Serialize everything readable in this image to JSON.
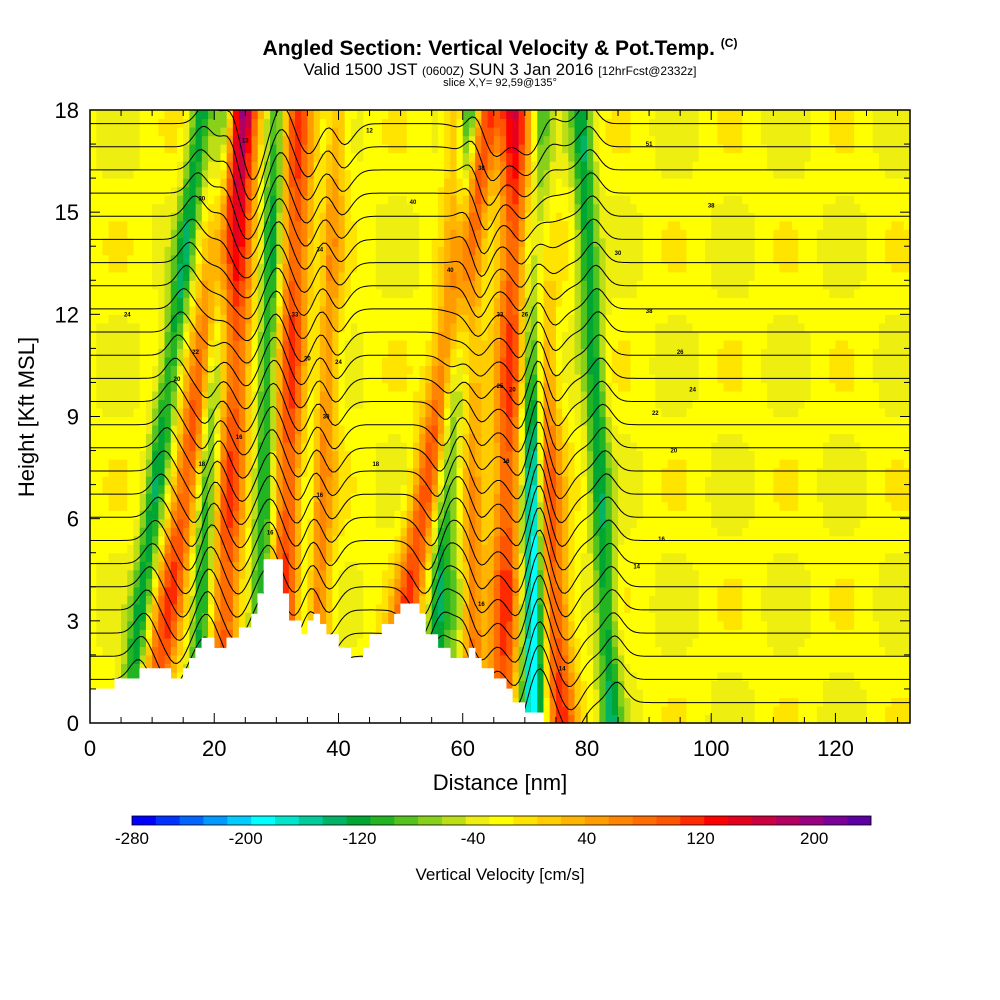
{
  "title": {
    "main": "Angled Section: Vertical Velocity & Pot.Temp.",
    "copyright": "(C)",
    "valid_prefix": "Valid 1500 JST",
    "valid_utc": "(0600Z)",
    "valid_date": "SUN 3 Jan 2016",
    "forecast": "[12hrFcst@2332z]",
    "slice": "slice X,Y= 92,59@135°"
  },
  "chart_data": {
    "type": "heatmap",
    "xlabel": "Distance [nm]",
    "ylabel": "Height [Kft MSL]",
    "xlim": [
      0,
      132
    ],
    "ylim": [
      0,
      18
    ],
    "x_ticks": [
      0,
      20,
      40,
      60,
      80,
      100,
      120
    ],
    "y_ticks": [
      0,
      3,
      6,
      9,
      12,
      15,
      18
    ],
    "colorbar": {
      "label": "Vertical Velocity [cm/s]",
      "min": -280,
      "max": 240,
      "step": 20,
      "tick_labels": [
        -280,
        -200,
        -120,
        -40,
        40,
        120,
        200
      ],
      "colors": [
        "#0000ff",
        "#0033ff",
        "#0066ff",
        "#0099ff",
        "#00ccff",
        "#00ffff",
        "#00e6cc",
        "#00cc99",
        "#00b366",
        "#00a633",
        "#22b422",
        "#55c21e",
        "#88d01a",
        "#bbde16",
        "#eeee10",
        "#ffff00",
        "#ffe400",
        "#ffcc00",
        "#ffb400",
        "#ff9c00",
        "#ff8400",
        "#ff6c00",
        "#ff5400",
        "#ff2a00",
        "#ff0000",
        "#e60020",
        "#cc0040",
        "#b30060",
        "#990080",
        "#7a0099",
        "#5c00a3"
      ]
    },
    "terrain": [
      [
        0,
        1.0
      ],
      [
        4,
        1.0
      ],
      [
        4,
        1.3
      ],
      [
        8,
        1.3
      ],
      [
        8,
        1.6
      ],
      [
        13,
        1.6
      ],
      [
        13,
        1.3
      ],
      [
        15,
        1.3
      ],
      [
        15,
        1.6
      ],
      [
        16,
        1.6
      ],
      [
        16,
        1.9
      ],
      [
        17,
        1.9
      ],
      [
        17,
        2.2
      ],
      [
        18,
        2.2
      ],
      [
        18,
        2.5
      ],
      [
        20,
        2.5
      ],
      [
        20,
        2.2
      ],
      [
        22,
        2.2
      ],
      [
        22,
        2.5
      ],
      [
        24,
        2.5
      ],
      [
        24,
        2.8
      ],
      [
        26,
        2.8
      ],
      [
        26,
        3.2
      ],
      [
        27,
        3.2
      ],
      [
        27,
        3.8
      ],
      [
        28,
        3.8
      ],
      [
        28,
        4.8
      ],
      [
        31,
        4.8
      ],
      [
        31,
        3.8
      ],
      [
        32,
        3.8
      ],
      [
        32,
        3.0
      ],
      [
        34,
        3.0
      ],
      [
        34,
        2.6
      ],
      [
        35,
        2.6
      ],
      [
        35,
        3.0
      ],
      [
        36,
        3.0
      ],
      [
        36,
        3.2
      ],
      [
        37,
        3.2
      ],
      [
        37,
        2.9
      ],
      [
        38,
        2.9
      ],
      [
        38,
        2.6
      ],
      [
        40,
        2.6
      ],
      [
        40,
        2.2
      ],
      [
        42,
        2.2
      ],
      [
        42,
        1.9
      ],
      [
        44,
        1.9
      ],
      [
        44,
        2.2
      ],
      [
        45,
        2.2
      ],
      [
        45,
        2.6
      ],
      [
        47,
        2.6
      ],
      [
        47,
        2.9
      ],
      [
        49,
        2.9
      ],
      [
        49,
        3.2
      ],
      [
        50,
        3.2
      ],
      [
        50,
        3.5
      ],
      [
        53,
        3.5
      ],
      [
        53,
        3.2
      ],
      [
        54,
        3.2
      ],
      [
        54,
        2.6
      ],
      [
        56,
        2.6
      ],
      [
        56,
        2.2
      ],
      [
        58,
        2.2
      ],
      [
        58,
        1.9
      ],
      [
        61,
        1.9
      ],
      [
        61,
        2.2
      ],
      [
        62,
        2.2
      ],
      [
        62,
        1.9
      ],
      [
        63,
        1.9
      ],
      [
        63,
        1.6
      ],
      [
        65,
        1.6
      ],
      [
        65,
        1.3
      ],
      [
        67,
        1.3
      ],
      [
        67,
        1.0
      ],
      [
        68,
        1.0
      ],
      [
        68,
        0.6
      ],
      [
        70,
        0.6
      ],
      [
        70,
        0.3
      ],
      [
        73,
        0.3
      ],
      [
        73,
        0.0
      ]
    ],
    "updrafts": [
      [
        10,
        14
      ],
      [
        21,
        4
      ],
      [
        30.5,
        3
      ],
      [
        35.5,
        3
      ],
      [
        48,
        16
      ],
      [
        61,
        -1
      ],
      [
        66.5,
        2
      ],
      [
        76,
        -6
      ]
    ],
    "downdrafts": [
      [
        6,
        12
      ],
      [
        17,
        5
      ],
      [
        27,
        3
      ],
      [
        34,
        4
      ],
      [
        55,
        6
      ],
      [
        59,
        2
      ],
      [
        70.5,
        2
      ],
      [
        72,
        -2
      ],
      [
        84,
        -5
      ]
    ],
    "isentrope_labels": [
      {
        "x": 25,
        "y": 17.1,
        "text": "13"
      },
      {
        "x": 45,
        "y": 17.4,
        "text": "12"
      },
      {
        "x": 63,
        "y": 16.3,
        "text": "38"
      },
      {
        "x": 90,
        "y": 17.0,
        "text": "51"
      },
      {
        "x": 18,
        "y": 15.4,
        "text": "30"
      },
      {
        "x": 52,
        "y": 15.3,
        "text": "40"
      },
      {
        "x": 100,
        "y": 15.2,
        "text": "38"
      },
      {
        "x": 37,
        "y": 13.9,
        "text": "34"
      },
      {
        "x": 58,
        "y": 13.3,
        "text": "40"
      },
      {
        "x": 85,
        "y": 13.8,
        "text": "30"
      },
      {
        "x": 6,
        "y": 12.0,
        "text": "24"
      },
      {
        "x": 33,
        "y": 12.0,
        "text": "33"
      },
      {
        "x": 66,
        "y": 12.0,
        "text": "33"
      },
      {
        "x": 70,
        "y": 12.0,
        "text": "26"
      },
      {
        "x": 90,
        "y": 12.1,
        "text": "38"
      },
      {
        "x": 17,
        "y": 10.9,
        "text": "22"
      },
      {
        "x": 35,
        "y": 10.7,
        "text": "20"
      },
      {
        "x": 40,
        "y": 10.6,
        "text": "24"
      },
      {
        "x": 95,
        "y": 10.9,
        "text": "26"
      },
      {
        "x": 14,
        "y": 10.1,
        "text": "20"
      },
      {
        "x": 66,
        "y": 9.9,
        "text": "25"
      },
      {
        "x": 68,
        "y": 9.8,
        "text": "20"
      },
      {
        "x": 97,
        "y": 9.8,
        "text": "24"
      },
      {
        "x": 38,
        "y": 9.0,
        "text": "30"
      },
      {
        "x": 91,
        "y": 9.1,
        "text": "22"
      },
      {
        "x": 24,
        "y": 8.4,
        "text": "16"
      },
      {
        "x": 94,
        "y": 8.0,
        "text": "20"
      },
      {
        "x": 18,
        "y": 7.6,
        "text": "18"
      },
      {
        "x": 46,
        "y": 7.6,
        "text": "18"
      },
      {
        "x": 67,
        "y": 7.7,
        "text": "16"
      },
      {
        "x": 37,
        "y": 6.7,
        "text": "16"
      },
      {
        "x": 29,
        "y": 5.6,
        "text": "16"
      },
      {
        "x": 92,
        "y": 5.4,
        "text": "16"
      },
      {
        "x": 88,
        "y": 4.6,
        "text": "14"
      },
      {
        "x": 63,
        "y": 3.5,
        "text": "16"
      },
      {
        "x": 76,
        "y": 1.6,
        "text": "14"
      }
    ]
  }
}
